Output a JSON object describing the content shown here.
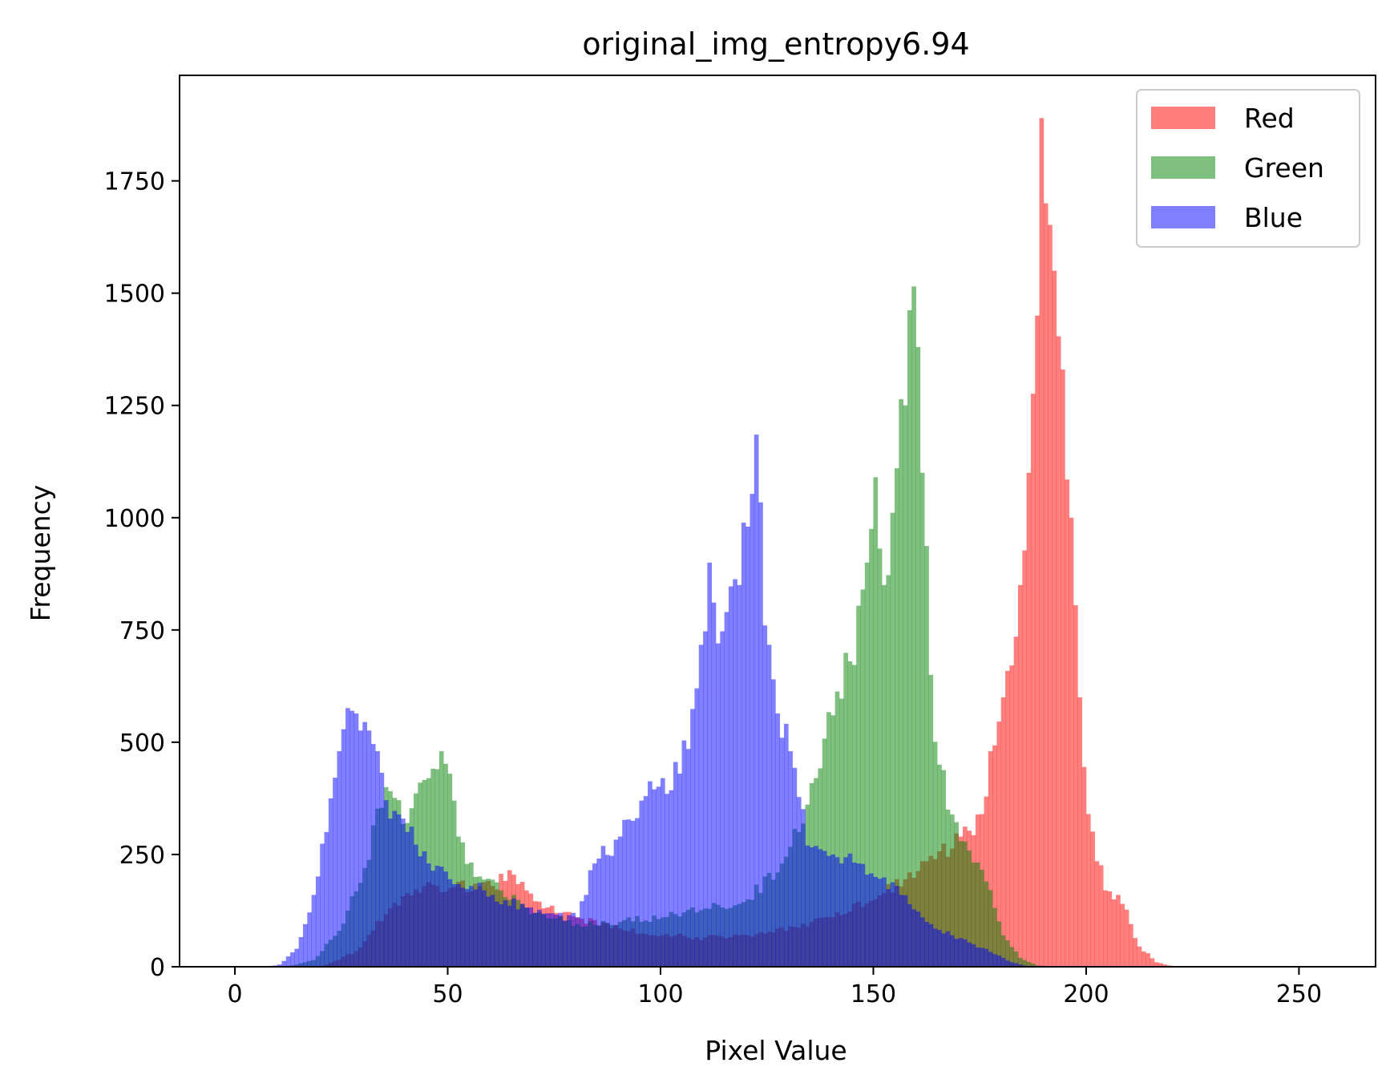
{
  "chart_data": {
    "type": "bar",
    "title": "original_img_entropy6.94",
    "xlabel": "Pixel Value",
    "ylabel": "Frequency",
    "xlim": [
      -13,
      268
    ],
    "ylim": [
      0,
      1985
    ],
    "xticks": [
      0,
      50,
      100,
      150,
      200,
      250
    ],
    "yticks": [
      0,
      250,
      500,
      750,
      1000,
      1250,
      1500,
      1750
    ],
    "legend_position": "top-right",
    "bin_width": 1,
    "series": [
      {
        "name": "Red",
        "color": "#ff0000",
        "opacity": 0.5,
        "peaks": [
          [
            5,
            0
          ],
          [
            12,
            0
          ],
          [
            20,
            0
          ],
          [
            28,
            35
          ],
          [
            36,
            130
          ],
          [
            44,
            180
          ],
          [
            50,
            175
          ],
          [
            56,
            185
          ],
          [
            60,
            180
          ],
          [
            64,
            215
          ],
          [
            68,
            170
          ],
          [
            72,
            130
          ],
          [
            80,
            110
          ],
          [
            90,
            85
          ],
          [
            100,
            70
          ],
          [
            110,
            65
          ],
          [
            120,
            70
          ],
          [
            130,
            90
          ],
          [
            140,
            110
          ],
          [
            150,
            150
          ],
          [
            158,
            210
          ],
          [
            164,
            240
          ],
          [
            170,
            290
          ],
          [
            175,
            340
          ],
          [
            180,
            600
          ],
          [
            184,
            850
          ],
          [
            186,
            1100
          ],
          [
            188,
            1450
          ],
          [
            189,
            1890
          ],
          [
            190,
            1700
          ],
          [
            192,
            1550
          ],
          [
            194,
            1330
          ],
          [
            196,
            1000
          ],
          [
            198,
            600
          ],
          [
            200,
            340
          ],
          [
            204,
            170
          ],
          [
            208,
            140
          ],
          [
            212,
            45
          ],
          [
            216,
            10
          ],
          [
            220,
            0
          ]
        ]
      },
      {
        "name": "Green",
        "color": "#008000",
        "opacity": 0.5,
        "peaks": [
          [
            12,
            0
          ],
          [
            18,
            15
          ],
          [
            24,
            80
          ],
          [
            30,
            220
          ],
          [
            35,
            400
          ],
          [
            40,
            320
          ],
          [
            45,
            420
          ],
          [
            48,
            480
          ],
          [
            50,
            430
          ],
          [
            52,
            290
          ],
          [
            56,
            200
          ],
          [
            62,
            170
          ],
          [
            70,
            120
          ],
          [
            80,
            95
          ],
          [
            90,
            100
          ],
          [
            100,
            110
          ],
          [
            110,
            130
          ],
          [
            120,
            150
          ],
          [
            128,
            230
          ],
          [
            132,
            300
          ],
          [
            136,
            420
          ],
          [
            140,
            560
          ],
          [
            144,
            680
          ],
          [
            148,
            900
          ],
          [
            150,
            1090
          ],
          [
            152,
            850
          ],
          [
            155,
            1110
          ],
          [
            157,
            1250
          ],
          [
            159,
            1515
          ],
          [
            161,
            1100
          ],
          [
            163,
            650
          ],
          [
            165,
            450
          ],
          [
            170,
            280
          ],
          [
            176,
            190
          ],
          [
            180,
            70
          ],
          [
            184,
            20
          ],
          [
            188,
            3
          ],
          [
            192,
            0
          ]
        ]
      },
      {
        "name": "Blue",
        "color": "#0000ff",
        "opacity": 0.5,
        "peaks": [
          [
            6,
            0
          ],
          [
            10,
            5
          ],
          [
            14,
            40
          ],
          [
            18,
            160
          ],
          [
            21,
            300
          ],
          [
            24,
            480
          ],
          [
            27,
            570
          ],
          [
            30,
            545
          ],
          [
            33,
            480
          ],
          [
            36,
            330
          ],
          [
            40,
            300
          ],
          [
            45,
            230
          ],
          [
            50,
            195
          ],
          [
            55,
            180
          ],
          [
            60,
            160
          ],
          [
            70,
            120
          ],
          [
            80,
            110
          ],
          [
            84,
            230
          ],
          [
            90,
            290
          ],
          [
            96,
            380
          ],
          [
            100,
            420
          ],
          [
            104,
            430
          ],
          [
            108,
            620
          ],
          [
            111,
            900
          ],
          [
            113,
            720
          ],
          [
            115,
            790
          ],
          [
            118,
            850
          ],
          [
            120,
            980
          ],
          [
            122,
            1185
          ],
          [
            124,
            760
          ],
          [
            126,
            640
          ],
          [
            130,
            480
          ],
          [
            134,
            270
          ],
          [
            140,
            250
          ],
          [
            146,
            230
          ],
          [
            150,
            200
          ],
          [
            156,
            160
          ],
          [
            162,
            100
          ],
          [
            168,
            70
          ],
          [
            176,
            40
          ],
          [
            182,
            10
          ],
          [
            186,
            0
          ]
        ]
      }
    ]
  }
}
